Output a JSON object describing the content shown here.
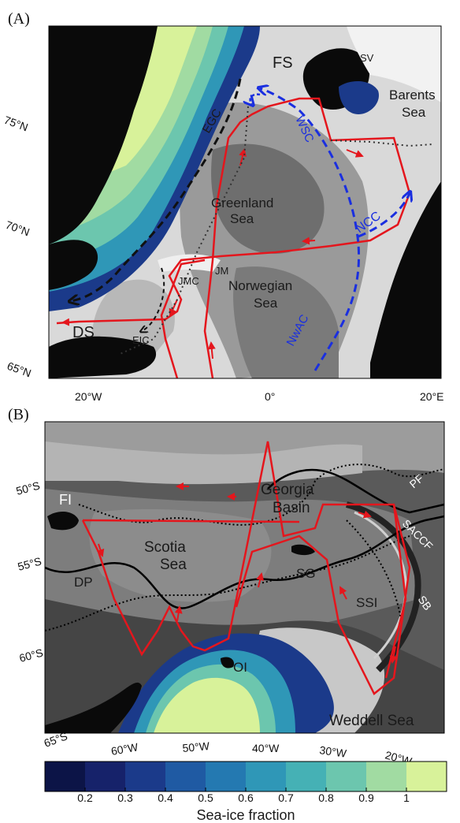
{
  "panel_a": {
    "panel_label": "(A)",
    "labels": {
      "fs": "FS",
      "sv": "SV",
      "barents": "Barents",
      "barents_sea": "Sea",
      "egc": "EGC",
      "wsc": "WSC",
      "greenland": "Greenland",
      "greenland_sea": "Sea",
      "ncc": "NCC",
      "jm": "JM",
      "jmc": "JMC",
      "norwegian": "Norwegian",
      "norwegian_sea": "Sea",
      "ds": "DS",
      "eic": "EIC",
      "nwac": "NwAC"
    },
    "lat_labels": [
      "75°N",
      "70°N",
      "65°N"
    ],
    "lon_labels": [
      "20°W",
      "0°",
      "20°E"
    ]
  },
  "panel_b": {
    "panel_label": "(B)",
    "labels": {
      "fi": "FI",
      "georgia": "Georgia",
      "georgia_basin": "Basin",
      "pf": "PF",
      "saccf": "SACCF",
      "scotia": "Scotia",
      "scotia_sea": "Sea",
      "sg": "SG",
      "dp": "DP",
      "ssi": "SSI",
      "sb": "SB",
      "oi": "OI",
      "weddell": "Weddell Sea"
    },
    "lat_labels": [
      "50°S",
      "55°S",
      "60°S",
      "65°S"
    ],
    "lon_labels": [
      "60°W",
      "50°W",
      "40°W",
      "30°W",
      "20°W"
    ]
  },
  "colorbar": {
    "title": "Sea-ice fraction",
    "ticks": [
      "0.2",
      "0.3",
      "0.4",
      "0.5",
      "0.6",
      "0.7",
      "0.8",
      "0.9",
      "1"
    ],
    "colors": [
      "#0c1447",
      "#16226a",
      "#1b3a8a",
      "#1f5aa3",
      "#2479b1",
      "#2f97b7",
      "#45b1b5",
      "#6cc6ae",
      "#a1dba2",
      "#d8f29a"
    ]
  },
  "colors": {
    "track": "#e4161d",
    "atlantic_current": "#1a2fe0",
    "polar_current": "#111111",
    "land": "#0a0a0a"
  }
}
